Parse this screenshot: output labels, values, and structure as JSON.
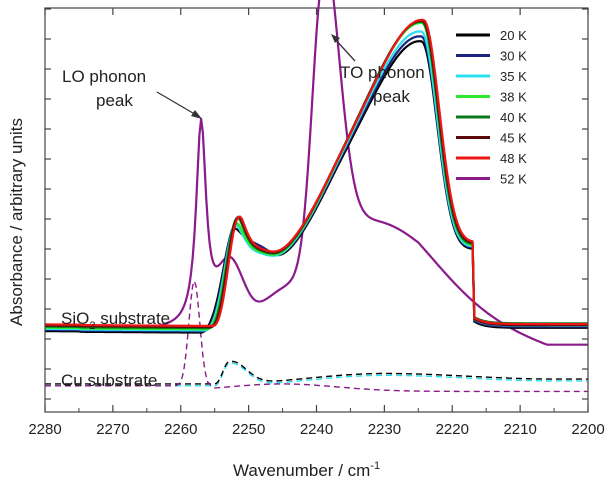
{
  "chart_data": {
    "type": "line",
    "title": "",
    "xlabel": "Wavenumber / cm",
    "xlabel_sup": "-1",
    "ylabel": "Absorbance / arbitrary units",
    "xlim": [
      2280,
      2200
    ],
    "xaxis_reversed": true,
    "x_ticks": [
      "2280",
      "2270",
      "2260",
      "2250",
      "2240",
      "2230",
      "2220",
      "2210",
      "2200"
    ],
    "y_ticks_labeled": false,
    "grid": false,
    "legend_position": "top-right",
    "annotations": {
      "lo_line1": "LO phonon",
      "lo_line2": "peak",
      "to_line1": "TO phonon",
      "to_line2": "peak",
      "sio2_main": "SiO",
      "sio2_sub": "2",
      "sio2_rest": " substrate",
      "cu": "Cu substrate"
    },
    "series": [
      {
        "name": "20 K",
        "color": "#000000",
        "peak": 2224.5,
        "amp": 0.56
      },
      {
        "name": "30 K",
        "color": "#1a237e",
        "peak": 2224.5,
        "amp": 0.57
      },
      {
        "name": "35 K",
        "color": "#29e0f0",
        "peak": 2224.5,
        "amp": 0.58
      },
      {
        "name": "38 K",
        "color": "#2ee82e",
        "peak": 2224.4,
        "amp": 0.6
      },
      {
        "name": "40 K",
        "color": "#0b7a1a",
        "peak": 2224.4,
        "amp": 0.6
      },
      {
        "name": "45 K",
        "color": "#5a0a0a",
        "peak": 2224.3,
        "amp": 0.6
      },
      {
        "name": "48 K",
        "color": "#ee1515",
        "peak": 2224.2,
        "amp": 0.6
      },
      {
        "name": "52 K",
        "color": "#8b1a8b",
        "lo_peak": 2257,
        "to_peak": 2239
      }
    ],
    "y_domain": [
      -0.05,
      1.03
    ]
  }
}
